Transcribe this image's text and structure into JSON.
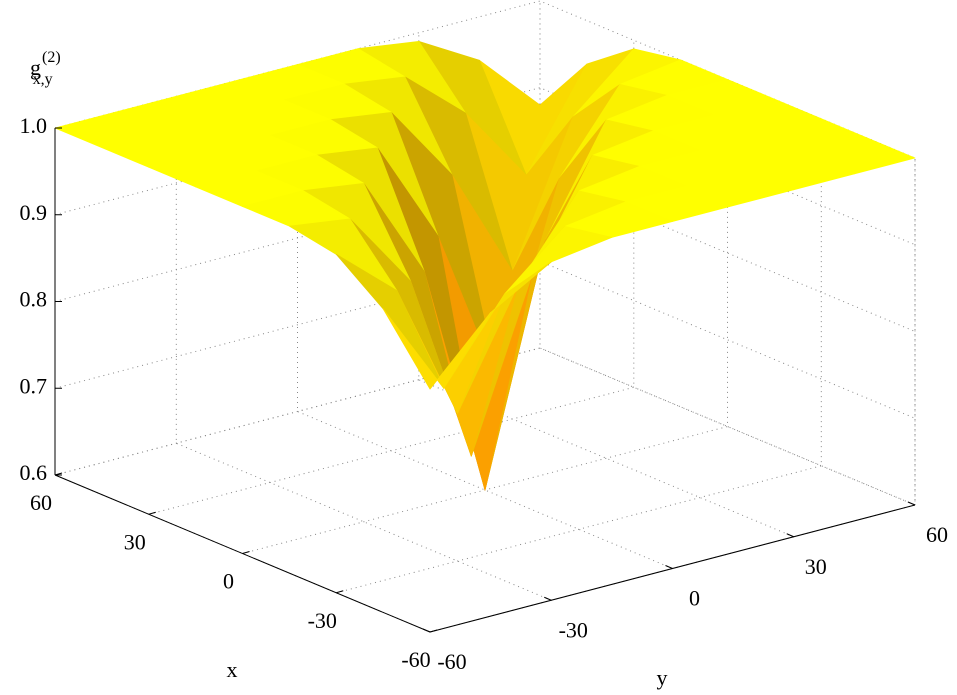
{
  "chart_data": {
    "type": "surface",
    "zlabel": {
      "base": "g",
      "sup": "(2)",
      "sub": "x,y"
    },
    "xlabel": "x",
    "ylabel": "y",
    "x": [
      -60,
      -45,
      -30,
      -15,
      0,
      15,
      30,
      45,
      60
    ],
    "y": [
      -60,
      -45,
      -30,
      -15,
      0,
      15,
      30,
      45,
      60
    ],
    "z": [
      [
        0.88,
        0.95,
        0.99,
        1,
        1,
        1,
        1,
        1,
        1
      ],
      [
        0.95,
        0.84,
        0.93,
        0.99,
        1,
        1,
        1,
        1,
        1
      ],
      [
        0.99,
        0.93,
        0.77,
        0.9,
        0.99,
        1,
        1,
        1,
        1
      ],
      [
        1,
        0.99,
        0.9,
        0.68,
        0.87,
        0.99,
        1,
        1,
        1
      ],
      [
        1,
        1,
        0.99,
        0.87,
        0.6,
        0.87,
        0.99,
        1,
        1
      ],
      [
        1,
        1,
        1,
        0.99,
        0.87,
        0.68,
        0.9,
        0.99,
        1
      ],
      [
        1,
        1,
        1,
        1,
        0.99,
        0.9,
        0.77,
        0.93,
        0.99
      ],
      [
        1,
        1,
        1,
        1,
        1,
        0.99,
        0.93,
        0.84,
        0.95
      ],
      [
        1,
        1,
        1,
        1,
        1,
        1,
        0.99,
        0.95,
        0.88
      ]
    ],
    "xlim": [
      -60,
      60
    ],
    "ylim": [
      -60,
      60
    ],
    "zlim": [
      0.6,
      1
    ],
    "xticks": [
      60,
      30,
      0,
      -30,
      -60
    ],
    "yticks": [
      -60,
      -30,
      0,
      30,
      60
    ],
    "zticks": [
      {
        "value": 1,
        "label": "1.0"
      },
      0.9,
      0.8,
      0.7,
      0.6
    ],
    "colormap": [
      "#ff2a00",
      "#ffff00"
    ],
    "grid": true
  }
}
